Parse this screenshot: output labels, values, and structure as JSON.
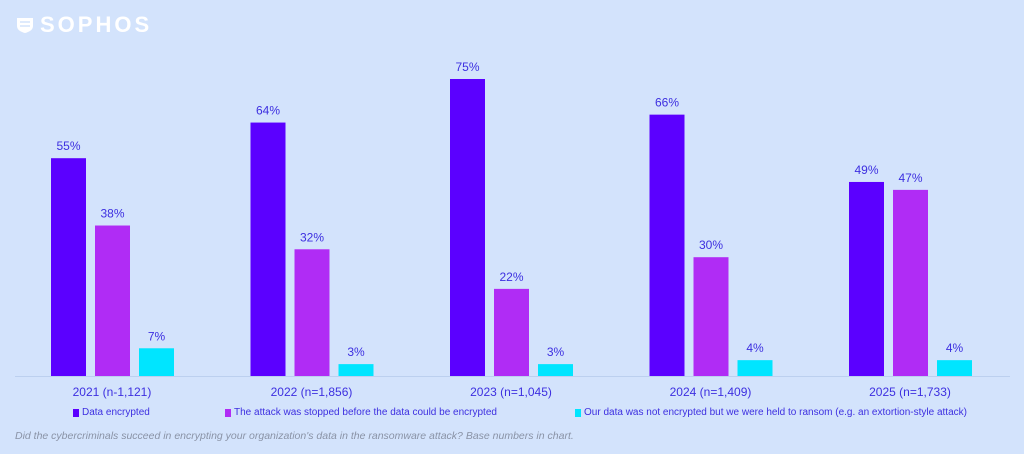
{
  "logo": "SOPHOS",
  "chart_data": {
    "type": "bar",
    "categories": [
      "2021 (n-1,121)",
      "2022 (n=1,856)",
      "2023 (n=1,045)",
      "2024 (n=1,409)",
      "2025 (n=1,733)"
    ],
    "series": [
      {
        "name": "Data encrypted",
        "values": [
          55,
          64,
          75,
          66,
          49
        ],
        "color": "#5b00ff"
      },
      {
        "name": "The attack was stopped before the data could be encrypted",
        "values": [
          38,
          32,
          22,
          30,
          47
        ],
        "color": "#b02cf5"
      },
      {
        "name": "Our data was not encrypted but we were held to ransom (e.g. an extortion-style attack)",
        "values": [
          7,
          3,
          3,
          4,
          4
        ],
        "color": "#00e5ff"
      }
    ],
    "value_suffix": "%",
    "ylim": [
      0,
      80
    ],
    "grid": false,
    "legend_placement": "bottom"
  },
  "caption": "Did the cybercriminals succeed in encrypting your organization's data in the ransomware attack?  Base numbers in chart."
}
